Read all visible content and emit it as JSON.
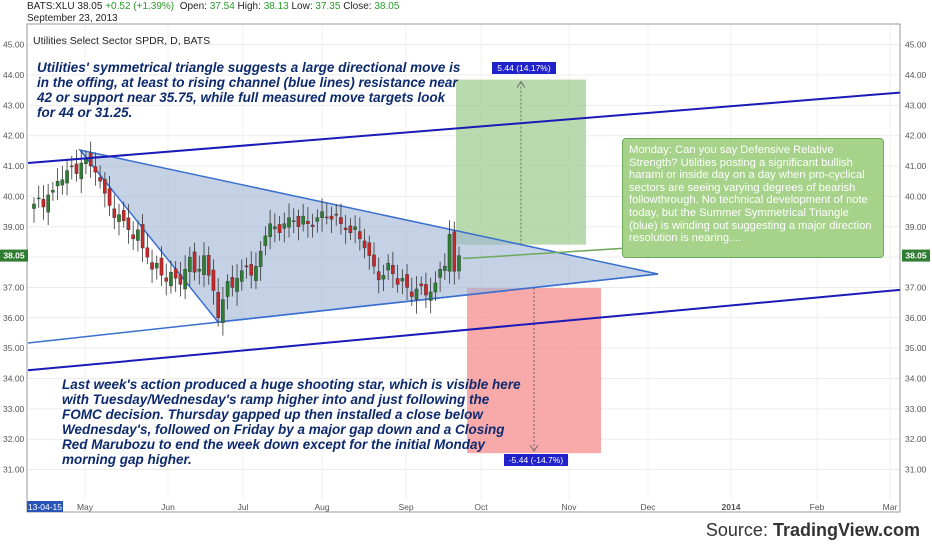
{
  "header": {
    "symbol": "BATS:XLU",
    "last": "38.05",
    "change": "+0.52 (+1.39%)",
    "open_label": "Open:",
    "open": "37.54",
    "high_label": "High:",
    "high": "38.13",
    "low_label": "Low:",
    "low": "37.35",
    "close_label": "Close:",
    "close": "38.05",
    "date": "September 23, 2013"
  },
  "chart_data": {
    "type": "candlestick",
    "title": "Utilities Select Sector SPDR, D, BATS",
    "ylim": [
      30.5,
      45.5
    ],
    "y_ticks": [
      "45.00",
      "44.00",
      "43.00",
      "42.00",
      "41.00",
      "40.00",
      "39.00",
      "38.00",
      "37.00",
      "36.00",
      "35.00",
      "34.00",
      "33.00",
      "32.00",
      "31.00"
    ],
    "y_tick_values": [
      45,
      44,
      43,
      42,
      41,
      40,
      39,
      38,
      37,
      36,
      35,
      34,
      33,
      32,
      31
    ],
    "x_labels": [
      "13-04-15",
      "May",
      "Jun",
      "Jul",
      "Aug",
      "Sep",
      "Oct",
      "Nov",
      "Dec",
      "2014",
      "Feb",
      "Mar"
    ],
    "last_price_label": "38.05",
    "colors": {
      "up": "#2e7d32",
      "down": "#c62828",
      "channel": "#1a1ab8",
      "triangle_fill": "#9fb4d6",
      "triangle_edge": "#3a6fd0",
      "target_up": "#a8d09a",
      "target_down": "#f79a9a",
      "badge": "#2222cc"
    },
    "closes": [
      39.75,
      39.95,
      39.65,
      40.05,
      40.2,
      40.5,
      40.55,
      40.85,
      41.0,
      40.75,
      41.1,
      41.25,
      41.0,
      40.8,
      40.5,
      40.1,
      39.7,
      39.3,
      39.4,
      39.2,
      38.9,
      38.6,
      38.9,
      38.3,
      38.0,
      37.6,
      37.8,
      37.4,
      37.2,
      37.5,
      37.3,
      37.1,
      37.6,
      38.0,
      37.5,
      37.6,
      38.05,
      37.4,
      36.9,
      36.0,
      36.6,
      37.2,
      37.0,
      37.3,
      37.55,
      37.7,
      37.4,
      37.7,
      38.2,
      38.7,
      39.1,
      39.0,
      38.8,
      39.1,
      39.3,
      39.2,
      39.0,
      39.35,
      39.1,
      39.0,
      39.3,
      39.5,
      39.3,
      39.25,
      39.4,
      39.1,
      38.9,
      38.8,
      39.0,
      38.6,
      38.3,
      38.05,
      37.7,
      37.25,
      37.4,
      37.8,
      37.45,
      37.1,
      37.3,
      37.0,
      36.7,
      36.95,
      37.05,
      36.75,
      36.85,
      37.15,
      37.6,
      37.7,
      38.75,
      37.53,
      38.05
    ],
    "target_up": {
      "label": "5.44 (14.17%)",
      "value": 5.44
    },
    "target_down": {
      "label": "-5.44 (-14.7%)",
      "value": -5.44
    }
  },
  "annotations": {
    "top": "Utilities' symmetrical triangle suggests a large directional move is in the offing, at least to rising channel (blue lines) resistance near 42 or support near 35.75, while full measured move targets look for 44 or 31.25.",
    "bottom": "Last week's action produced a huge shooting star, which is visible here with Tuesday/Wednesday's ramp higher into and just following the FOMC decision. Thursday gapped up then installed a close below Wednesday's, followed on Friday by a major gap down and a Closing Red Marubozu to end the week down except for the initial Monday morning gap higher.",
    "callout": "Monday: Can you say Defensive Relative Strength?  Utilities posting a significant bullish harami or inside day on a day when pro-cyclical sectors are seeing varying degrees of bearish followthrough. No technical development of note today, but the Summer Symmetrical Triangle (blue) is winding out suggesting a major direction resolution is nearing...."
  },
  "source": {
    "prefix": "Source: ",
    "name": "TradingView.com"
  }
}
